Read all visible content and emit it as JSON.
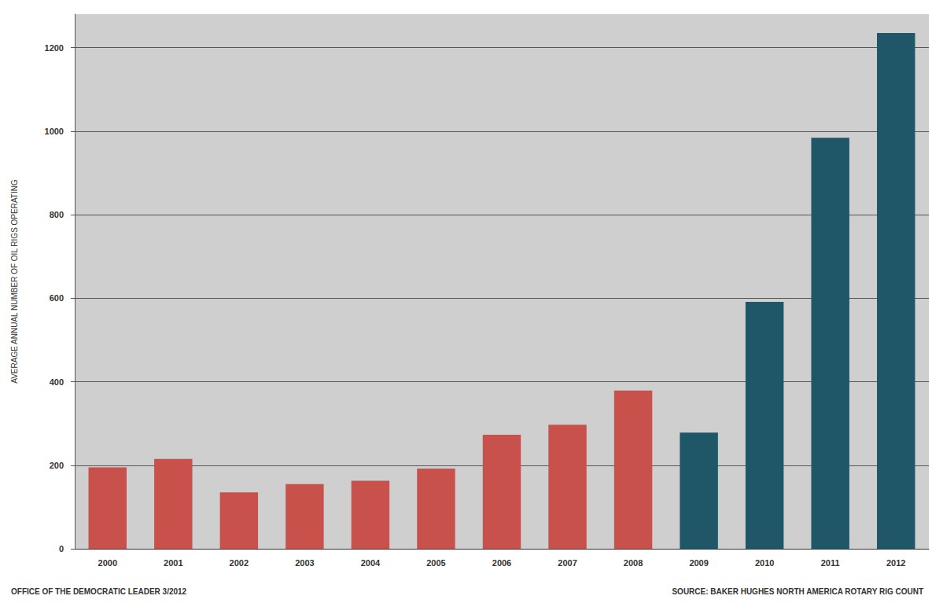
{
  "chart_data": {
    "type": "bar",
    "y_label": "AVERAGE ANNUAL NUMBER OF OIL RIGS OPERATING",
    "annotations": [
      "OFFICE OF THE DEMOCRATIC LEADER 3/2012",
      "SOURCE: BAKER HUGHES NORTH AMERICA ROTARY RIG COUNT"
    ],
    "categories": [
      "2000",
      "2001",
      "2002",
      "2003",
      "2004",
      "2005",
      "2006",
      "2007",
      "2008",
      "2009",
      "2010",
      "2011",
      "2012"
    ],
    "values": [
      195,
      215,
      135,
      155,
      163,
      192,
      273,
      297,
      379,
      278,
      591,
      984,
      1235
    ],
    "colors": [
      "#c8514c",
      "#c8514c",
      "#c8514c",
      "#c8514c",
      "#c8514c",
      "#c8514c",
      "#c8514c",
      "#c8514c",
      "#c8514c",
      "#1f5769",
      "#1f5769",
      "#1f5769",
      "#1f5769"
    ],
    "ylim": [
      0,
      1280
    ],
    "yticks": [
      0,
      200,
      400,
      600,
      800,
      1000,
      1200
    ],
    "grid": true
  }
}
